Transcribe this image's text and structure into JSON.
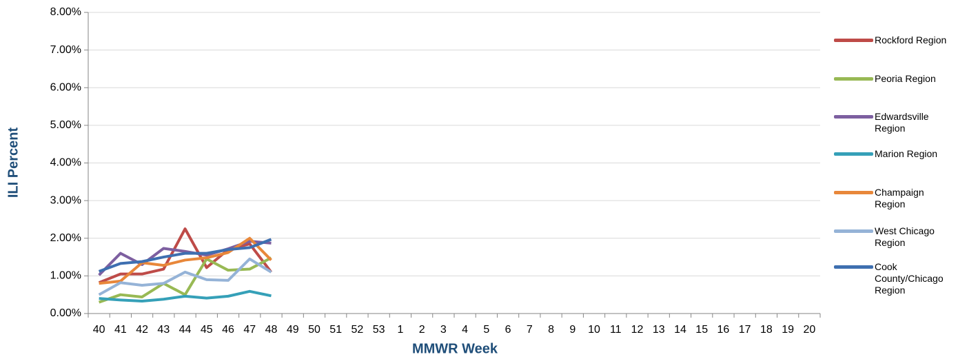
{
  "chart_data": {
    "type": "line",
    "x_label": "MMWR Week",
    "y_label": "ILI Percent",
    "categories": [
      "40",
      "41",
      "42",
      "43",
      "44",
      "45",
      "46",
      "47",
      "48",
      "49",
      "50",
      "51",
      "52",
      "53",
      "1",
      "2",
      "3",
      "4",
      "5",
      "6",
      "7",
      "8",
      "9",
      "10",
      "11",
      "12",
      "13",
      "14",
      "15",
      "16",
      "17",
      "18",
      "19",
      "20"
    ],
    "ylim": [
      0,
      8
    ],
    "yticks": [
      {
        "value": 0,
        "label": "0.00%"
      },
      {
        "value": 1,
        "label": "1.00%"
      },
      {
        "value": 2,
        "label": "2.00%"
      },
      {
        "value": 3,
        "label": "3.00%"
      },
      {
        "value": 4,
        "label": "4.00%"
      },
      {
        "value": 5,
        "label": "5.00%"
      },
      {
        "value": 6,
        "label": "6.00%"
      },
      {
        "value": 7,
        "label": "7.00%"
      },
      {
        "value": 8,
        "label": "8.00%"
      }
    ],
    "grid": true,
    "legend": "right",
    "series": [
      {
        "name": "Rockford Region",
        "color": "#be4b48",
        "values": [
          0.82,
          1.05,
          1.05,
          1.18,
          2.25,
          1.22,
          1.7,
          1.85,
          1.1,
          null,
          null,
          null,
          null,
          null,
          null,
          null,
          null,
          null,
          null,
          null,
          null,
          null,
          null,
          null,
          null,
          null,
          null,
          null,
          null,
          null,
          null,
          null,
          null,
          null
        ]
      },
      {
        "name": "Peoria Region",
        "color": "#98b954",
        "values": [
          0.3,
          0.5,
          0.44,
          0.8,
          0.5,
          1.45,
          1.15,
          1.18,
          1.48,
          null,
          null,
          null,
          null,
          null,
          null,
          null,
          null,
          null,
          null,
          null,
          null,
          null,
          null,
          null,
          null,
          null,
          null,
          null,
          null,
          null,
          null,
          null,
          null,
          null
        ]
      },
      {
        "name": "Edwardsville Region",
        "color": "#7d5fa0",
        "values": [
          1.02,
          1.6,
          1.3,
          1.73,
          1.65,
          1.55,
          1.72,
          1.92,
          1.87,
          null,
          null,
          null,
          null,
          null,
          null,
          null,
          null,
          null,
          null,
          null,
          null,
          null,
          null,
          null,
          null,
          null,
          null,
          null,
          null,
          null,
          null,
          null,
          null,
          null
        ]
      },
      {
        "name": "Marion Region",
        "color": "#35a0b8",
        "values": [
          0.4,
          0.36,
          0.33,
          0.38,
          0.46,
          0.41,
          0.46,
          0.59,
          0.47,
          null,
          null,
          null,
          null,
          null,
          null,
          null,
          null,
          null,
          null,
          null,
          null,
          null,
          null,
          null,
          null,
          null,
          null,
          null,
          null,
          null,
          null,
          null,
          null,
          null
        ]
      },
      {
        "name": "Champaign Region",
        "color": "#e8873a",
        "values": [
          0.8,
          0.86,
          1.35,
          1.28,
          1.42,
          1.48,
          1.62,
          2.0,
          1.42,
          null,
          null,
          null,
          null,
          null,
          null,
          null,
          null,
          null,
          null,
          null,
          null,
          null,
          null,
          null,
          null,
          null,
          null,
          null,
          null,
          null,
          null,
          null,
          null,
          null
        ]
      },
      {
        "name": "West Chicago Region",
        "color": "#95b3d7",
        "values": [
          0.5,
          0.82,
          0.75,
          0.8,
          1.1,
          0.9,
          0.88,
          1.45,
          1.1,
          null,
          null,
          null,
          null,
          null,
          null,
          null,
          null,
          null,
          null,
          null,
          null,
          null,
          null,
          null,
          null,
          null,
          null,
          null,
          null,
          null,
          null,
          null,
          null,
          null
        ]
      },
      {
        "name": "Cook County/Chicago Region",
        "color": "#3e6fb0",
        "values": [
          1.12,
          1.33,
          1.38,
          1.5,
          1.6,
          1.6,
          1.7,
          1.75,
          1.97,
          null,
          null,
          null,
          null,
          null,
          null,
          null,
          null,
          null,
          null,
          null,
          null,
          null,
          null,
          null,
          null,
          null,
          null,
          null,
          null,
          null,
          null,
          null,
          null,
          null
        ]
      }
    ]
  }
}
